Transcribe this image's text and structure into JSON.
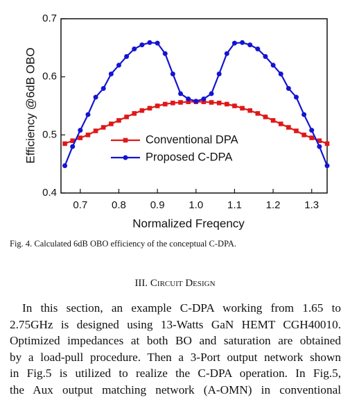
{
  "chart_data": {
    "type": "line",
    "x_label": "Normalized Freqency",
    "y_label": "Efficiency @6dB OBO",
    "x": [
      0.66,
      0.68,
      0.7,
      0.72,
      0.74,
      0.76,
      0.78,
      0.8,
      0.82,
      0.84,
      0.86,
      0.88,
      0.9,
      0.92,
      0.94,
      0.96,
      0.98,
      1.0,
      1.02,
      1.04,
      1.06,
      1.08,
      1.1,
      1.12,
      1.14,
      1.16,
      1.18,
      1.2,
      1.22,
      1.24,
      1.26,
      1.28,
      1.3,
      1.32,
      1.34
    ],
    "series": [
      {
        "name": "Conventional DPA",
        "color": "#e01818",
        "marker": "square",
        "values": [
          0.485,
          0.49,
          0.495,
          0.5,
          0.507,
          0.513,
          0.519,
          0.525,
          0.531,
          0.537,
          0.542,
          0.546,
          0.55,
          0.553,
          0.555,
          0.556,
          0.557,
          0.557,
          0.557,
          0.556,
          0.555,
          0.553,
          0.55,
          0.546,
          0.542,
          0.537,
          0.531,
          0.525,
          0.519,
          0.513,
          0.507,
          0.5,
          0.495,
          0.49,
          0.485
        ]
      },
      {
        "name": "Proposed C-DPA",
        "color": "#1414d2",
        "marker": "circle",
        "values": [
          0.447,
          0.48,
          0.508,
          0.535,
          0.565,
          0.58,
          0.605,
          0.62,
          0.635,
          0.648,
          0.655,
          0.659,
          0.658,
          0.64,
          0.605,
          0.571,
          0.562,
          0.558,
          0.562,
          0.571,
          0.605,
          0.64,
          0.658,
          0.659,
          0.655,
          0.648,
          0.635,
          0.62,
          0.605,
          0.58,
          0.565,
          0.535,
          0.508,
          0.48,
          0.447
        ]
      }
    ],
    "xlim": [
      0.65,
      1.34
    ],
    "ylim": [
      0.4,
      0.7
    ],
    "xticks": [
      0.7,
      0.8,
      0.9,
      {
        "value": 1,
        "label": "1.0"
      },
      1.1,
      1.2,
      1.3
    ],
    "yticks": [
      0.4,
      0.5,
      0.6,
      0.7
    ],
    "legend": "lower center"
  },
  "caption": "Fig. 4.  Calculated 6dB OBO efficiency of the conceptual C-DPA.",
  "section": {
    "heading": "III. Circuit Design",
    "lines": [
      "In this section, an example C-DPA working from 1.65 to",
      "2.75GHz is designed using 13-Watts GaN HEMT CGH40010.",
      "Optimized impedances at both BO and saturation are obtained",
      "by a load-pull procedure. Then a 3-Port output network shown",
      "in Fig.5 is utilized to realize the C-DPA operation. In Fig.5,",
      "the Aux output matching network (A-OMN) in conventional"
    ]
  }
}
